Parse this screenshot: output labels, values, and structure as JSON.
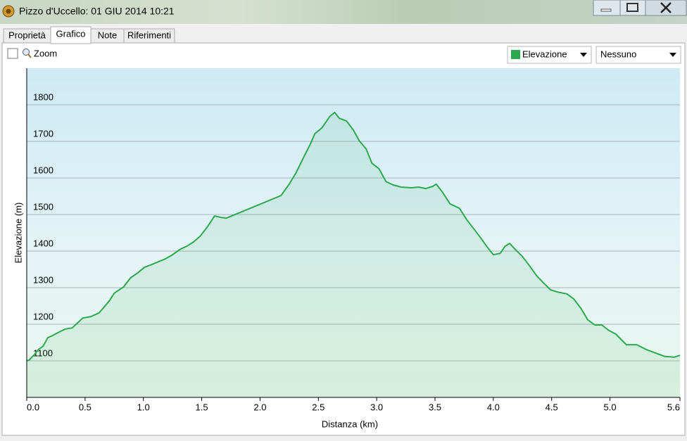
{
  "window": {
    "title": "Pizzo d'Uccello: 01 GIU 2014 10:21"
  },
  "tabs": [
    "Proprietà",
    "Grafico",
    "Note",
    "Riferimenti"
  ],
  "toolbar": {
    "zoom": "Zoom",
    "second_dropdown": "Nessuno"
  },
  "chart_data": {
    "type": "line",
    "y_label": "Elevazione (m)",
    "x_label": "Distanza (km)",
    "x": [
      0.0,
      0.02,
      0.06,
      0.1,
      0.14,
      0.18,
      0.22,
      0.28,
      0.33,
      0.39,
      0.43,
      0.48,
      0.55,
      0.62,
      0.66,
      0.71,
      0.75,
      0.83,
      0.89,
      0.95,
      1.01,
      1.07,
      1.13,
      1.19,
      1.25,
      1.31,
      1.37,
      1.43,
      1.49,
      1.55,
      1.61,
      1.67,
      1.71,
      2.18,
      2.25,
      2.31,
      2.37,
      2.43,
      2.47,
      2.53,
      2.6,
      2.64,
      2.68,
      2.74,
      2.8,
      2.85,
      2.91,
      2.96,
      3.02,
      3.08,
      3.14,
      3.21,
      3.3,
      3.36,
      3.42,
      3.48,
      3.51,
      3.56,
      3.63,
      3.71,
      3.77,
      3.83,
      3.89,
      3.95,
      4.0,
      4.06,
      4.1,
      4.14,
      4.19,
      4.25,
      4.31,
      4.37,
      4.43,
      4.49,
      4.55,
      4.63,
      4.69,
      4.75,
      4.81,
      4.87,
      4.93,
      4.99,
      5.05,
      5.14,
      5.23,
      5.31,
      5.41,
      5.47,
      5.55,
      5.6
    ],
    "series": [
      {
        "name": "Elevazione",
        "color": "#2ea84e",
        "values": [
          1100,
          1102,
          1115,
          1131,
          1140,
          1163,
          1169,
          1179,
          1187,
          1190,
          1202,
          1217,
          1221,
          1231,
          1246,
          1265,
          1285,
          1302,
          1327,
          1340,
          1356,
          1363,
          1371,
          1379,
          1390,
          1404,
          1413,
          1425,
          1442,
          1467,
          1496,
          1492,
          1490,
          1552,
          1583,
          1615,
          1654,
          1692,
          1721,
          1737,
          1769,
          1779,
          1763,
          1756,
          1731,
          1702,
          1679,
          1640,
          1625,
          1590,
          1581,
          1575,
          1573,
          1575,
          1571,
          1577,
          1583,
          1563,
          1529,
          1517,
          1487,
          1462,
          1437,
          1410,
          1390,
          1394,
          1413,
          1421,
          1404,
          1385,
          1360,
          1333,
          1313,
          1294,
          1288,
          1283,
          1269,
          1244,
          1212,
          1198,
          1198,
          1183,
          1173,
          1144,
          1144,
          1131,
          1119,
          1112,
          1110,
          1115
        ]
      }
    ],
    "xlim": [
      0,
      5.6
    ],
    "xticks": [
      {
        "value": 0,
        "label": "0.0"
      },
      0.5,
      {
        "value": 1,
        "label": "1.0"
      },
      1.5,
      {
        "value": 2,
        "label": "2.0"
      },
      2.5,
      {
        "value": 3,
        "label": "3.0"
      },
      3.5,
      {
        "value": 4,
        "label": "4.0"
      },
      4.5,
      {
        "value": 5,
        "label": "5.0"
      },
      5.6
    ],
    "ylim": [
      1000,
      1900
    ],
    "yticks": [
      1100,
      1200,
      1300,
      1400,
      1500,
      1600,
      1700,
      1800
    ],
    "grid": true
  }
}
